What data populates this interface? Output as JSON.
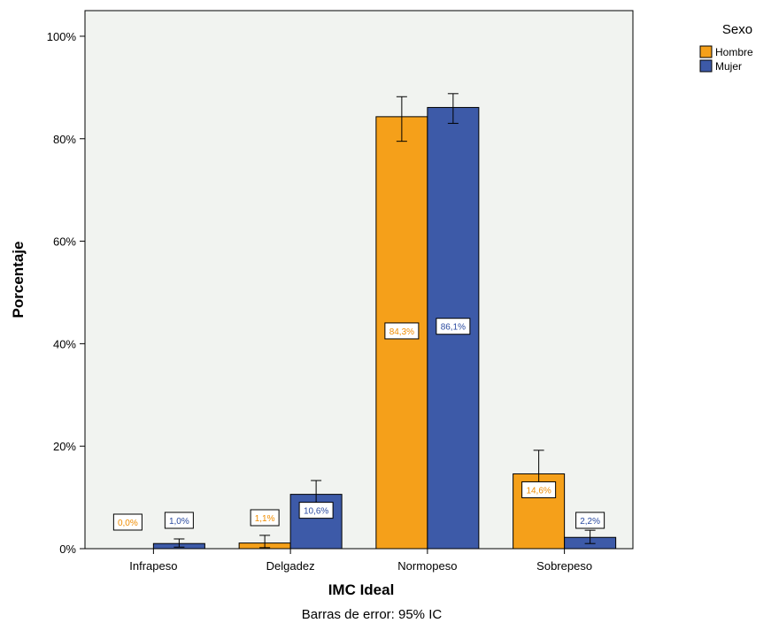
{
  "chart_data": {
    "type": "bar",
    "categories": [
      "Infrapeso",
      "Delgadez",
      "Normopeso",
      "Sobrepeso"
    ],
    "series": [
      {
        "name": "Hombre",
        "color": "#f5a01a",
        "label_color": "#f08c00",
        "values": [
          0.0,
          1.1,
          84.3,
          14.6
        ],
        "labels": [
          "0,0%",
          "1,1%",
          "84,3%",
          "14,6%"
        ],
        "ci_low": [
          0.0,
          0.2,
          79.5,
          11.0
        ],
        "ci_high": [
          0.0,
          2.6,
          88.2,
          19.2
        ]
      },
      {
        "name": "Mujer",
        "color": "#3d5aa8",
        "label_color": "#2a4aa0",
        "values": [
          1.0,
          10.6,
          86.1,
          2.2
        ],
        "labels": [
          "1,0%",
          "10,6%",
          "86,1%",
          "2,2%"
        ],
        "ci_low": [
          0.3,
          8.2,
          83.0,
          1.0
        ],
        "ci_high": [
          1.9,
          13.3,
          88.8,
          3.6
        ]
      }
    ],
    "xlabel": "IMC Ideal",
    "ylabel": "Porcentaje",
    "ylim": [
      0,
      100
    ],
    "yticks": [
      0,
      20,
      40,
      60,
      80,
      100
    ],
    "ytick_labels": [
      "0%",
      "20%",
      "40%",
      "60%",
      "80%",
      "100%"
    ],
    "footnote": "Barras de error: 95% IC",
    "legend_title": "Sexo",
    "legend_position": "top-right",
    "plot_background": "#f1f3f0",
    "grid": false
  }
}
